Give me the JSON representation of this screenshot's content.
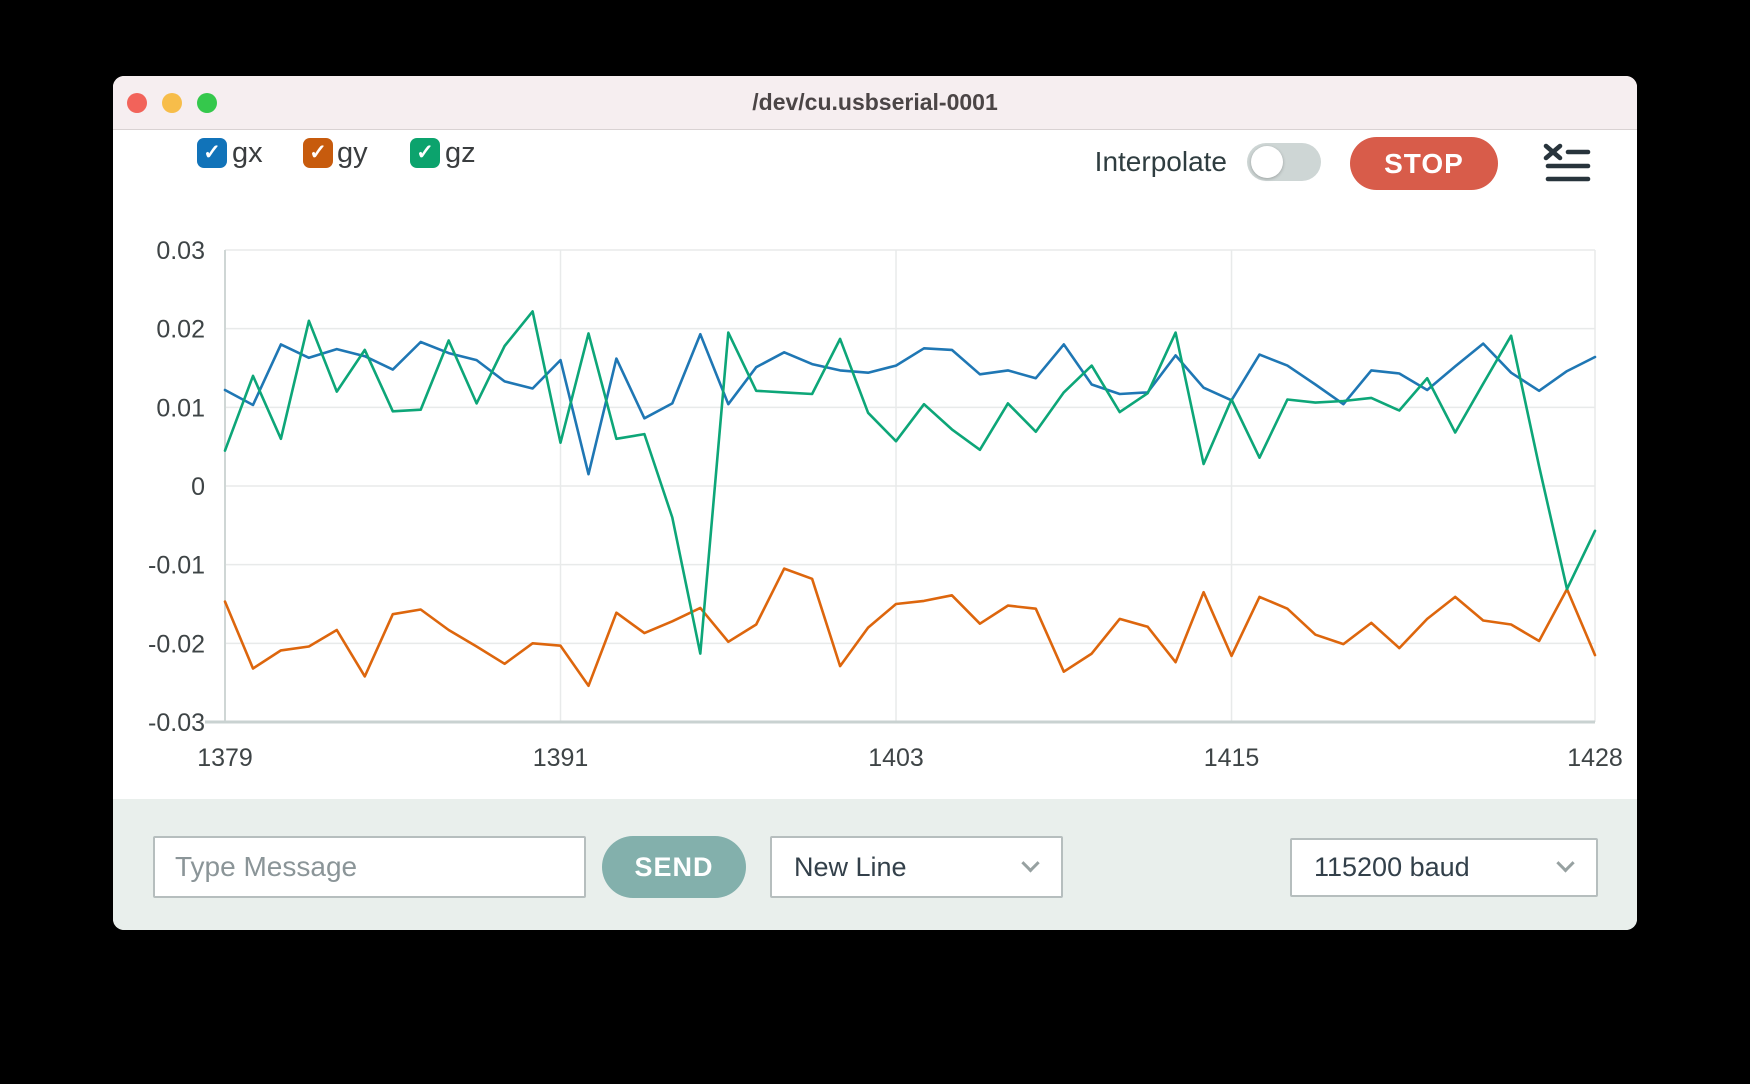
{
  "window": {
    "title": "/dev/cu.usbserial-0001"
  },
  "legend": {
    "items": [
      {
        "label": "gx",
        "checked": true,
        "color": "#1173b9",
        "check_glyph": "✓"
      },
      {
        "label": "gy",
        "checked": true,
        "color": "#c75b0d",
        "check_glyph": "✓"
      },
      {
        "label": "gz",
        "checked": true,
        "color": "#0ca36d",
        "check_glyph": "✓"
      }
    ]
  },
  "controls": {
    "interpolate_label": "Interpolate",
    "interpolate_on": false,
    "stop_label": "STOP",
    "clear_icon": "clear-list-icon"
  },
  "chart_data": {
    "type": "line",
    "title": "",
    "xlabel": "",
    "ylabel": "",
    "xlim": [
      1379,
      1428
    ],
    "ylim": [
      -0.03,
      0.03
    ],
    "xticks": [
      1379,
      1391,
      1403,
      1415,
      1428
    ],
    "yticks": [
      0.03,
      0.02,
      0.01,
      0,
      -0.01,
      -0.02,
      -0.03
    ],
    "grid": true,
    "legend_position": "top-left",
    "x": [
      1379,
      1380,
      1381,
      1382,
      1383,
      1384,
      1385,
      1386,
      1387,
      1388,
      1389,
      1390,
      1391,
      1392,
      1393,
      1394,
      1395,
      1396,
      1397,
      1398,
      1399,
      1400,
      1401,
      1402,
      1403,
      1404,
      1405,
      1406,
      1407,
      1408,
      1409,
      1410,
      1411,
      1412,
      1413,
      1414,
      1415,
      1416,
      1417,
      1418,
      1419,
      1420,
      1421,
      1422,
      1423,
      1424,
      1425,
      1426,
      1427,
      1428
    ],
    "series": [
      {
        "name": "gx",
        "color": "#1f77b4",
        "values": [
          0.0122,
          0.0103,
          0.018,
          0.0163,
          0.0174,
          0.0165,
          0.0148,
          0.0183,
          0.0169,
          0.016,
          0.0133,
          0.0124,
          0.016,
          0.0015,
          0.0162,
          0.0086,
          0.0105,
          0.0193,
          0.0104,
          0.0151,
          0.017,
          0.0155,
          0.0147,
          0.0144,
          0.0153,
          0.0175,
          0.0173,
          0.0142,
          0.0147,
          0.0137,
          0.018,
          0.0129,
          0.0117,
          0.0119,
          0.0166,
          0.0125,
          0.0109,
          0.0167,
          0.0153,
          0.0129,
          0.0104,
          0.0147,
          0.0143,
          0.0122,
          0.0152,
          0.0181,
          0.0144,
          0.0121,
          0.0146,
          0.0164
        ]
      },
      {
        "name": "gy",
        "color": "#dd660d",
        "values": [
          -0.0147,
          -0.0232,
          -0.0209,
          -0.0204,
          -0.0183,
          -0.0242,
          -0.0163,
          -0.0157,
          -0.0183,
          -0.0204,
          -0.0226,
          -0.02,
          -0.0203,
          -0.0254,
          -0.0161,
          -0.0187,
          -0.0172,
          -0.0155,
          -0.0198,
          -0.0176,
          -0.0105,
          -0.0118,
          -0.0229,
          -0.018,
          -0.015,
          -0.0146,
          -0.0139,
          -0.0175,
          -0.0152,
          -0.0156,
          -0.0236,
          -0.0213,
          -0.0169,
          -0.0179,
          -0.0224,
          -0.0135,
          -0.0216,
          -0.0141,
          -0.0156,
          -0.0189,
          -0.0201,
          -0.0174,
          -0.0206,
          -0.0169,
          -0.0141,
          -0.0171,
          -0.0176,
          -0.0197,
          -0.0131,
          -0.0215
        ]
      },
      {
        "name": "gz",
        "color": "#0da678",
        "values": [
          0.0045,
          0.014,
          0.006,
          0.021,
          0.012,
          0.0173,
          0.0095,
          0.0097,
          0.0185,
          0.0105,
          0.0178,
          0.0222,
          0.0055,
          0.0194,
          0.006,
          0.0066,
          -0.004,
          -0.0213,
          0.0195,
          0.0121,
          0.0119,
          0.0117,
          0.0187,
          0.0093,
          0.0057,
          0.0104,
          0.0072,
          0.0046,
          0.0105,
          0.0069,
          0.0119,
          0.0153,
          0.0094,
          0.0118,
          0.0195,
          0.0028,
          0.011,
          0.0036,
          0.011,
          0.0106,
          0.0108,
          0.0112,
          0.0096,
          0.0137,
          0.0068,
          0.013,
          0.0191,
          0.0025,
          -0.0131,
          -0.0057
        ]
      }
    ]
  },
  "message_bar": {
    "input_placeholder": "Type Message",
    "send_label": "SEND",
    "line_ending_value": "New Line",
    "baud_value": "115200 baud"
  }
}
